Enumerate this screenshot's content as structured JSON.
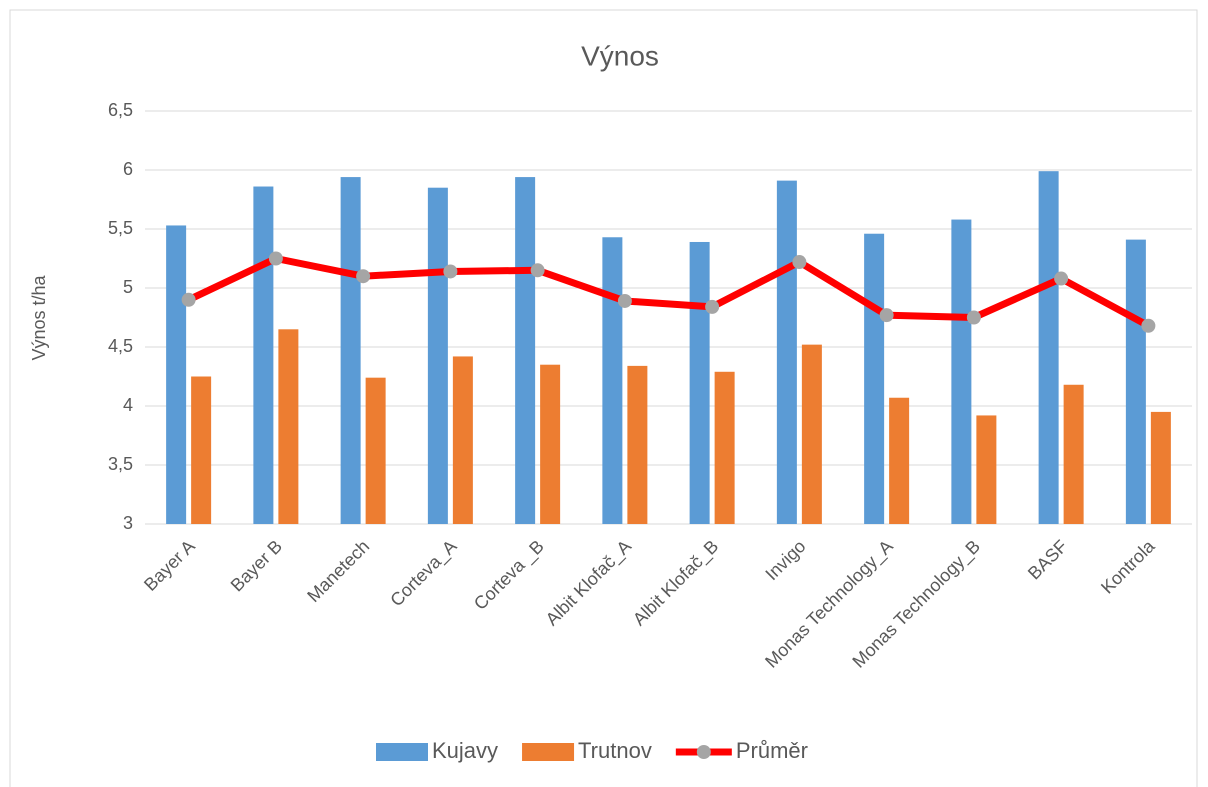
{
  "chart_data": {
    "type": "bar_line",
    "title": "Výnos",
    "y_label": "Výnos t/ha",
    "categories": [
      "Bayer A",
      "Bayer B",
      "Manetech",
      "Corteva_A",
      "Corteva _B",
      "Albit Klofač_A",
      "Albit Klofač_B",
      "Invigo",
      "Monas Technology_A",
      "Monas Technology_B",
      "BASF",
      "Kontrola"
    ],
    "series": [
      {
        "name": "Kujavy",
        "type": "bar",
        "color": "#5b9bd5",
        "values": [
          5.53,
          5.86,
          5.94,
          5.85,
          5.94,
          5.43,
          5.39,
          5.91,
          5.46,
          5.58,
          5.99,
          5.41
        ]
      },
      {
        "name": "Trutnov",
        "type": "bar",
        "color": "#ed7d31",
        "values": [
          4.25,
          4.65,
          4.24,
          4.42,
          4.35,
          4.34,
          4.29,
          4.52,
          4.07,
          3.92,
          4.18,
          3.95
        ]
      },
      {
        "name": "Průměr",
        "type": "line",
        "color": "#ff0000",
        "marker_color": "#a5a5a5",
        "values": [
          4.9,
          5.25,
          5.1,
          5.14,
          5.15,
          4.89,
          4.84,
          5.22,
          4.77,
          4.75,
          5.08,
          4.68
        ]
      }
    ],
    "ylim": [
      3,
      6.5
    ],
    "yticks": [
      3,
      {
        "value": 3.5,
        "label": "3,5"
      },
      4,
      {
        "value": 4.5,
        "label": "4,5"
      },
      5,
      {
        "value": 5.5,
        "label": "5,5"
      },
      6,
      {
        "value": 6.5,
        "label": "6,5"
      }
    ],
    "grid": true,
    "legend": "bottom"
  }
}
